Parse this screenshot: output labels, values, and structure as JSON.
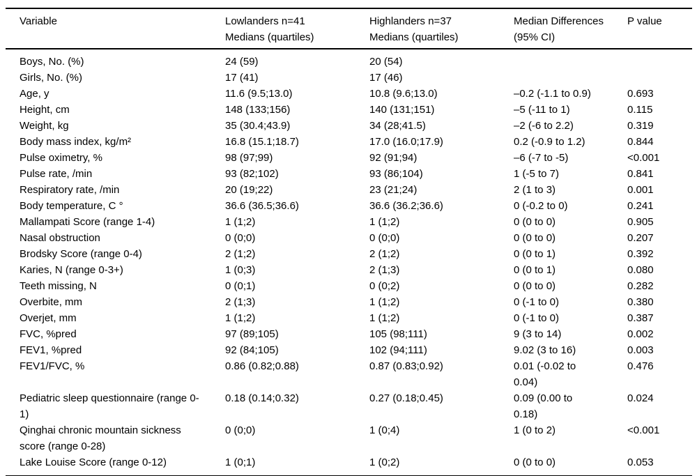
{
  "table": {
    "columns": [
      {
        "key": "variable",
        "line1": "Variable",
        "line2": ""
      },
      {
        "key": "lowlanders",
        "line1": "Lowlanders n=41",
        "line2": "Medians (quartiles)"
      },
      {
        "key": "highlanders",
        "line1": "Highlanders n=37",
        "line2": "Medians (quartiles)"
      },
      {
        "key": "median_difference",
        "line1": "Median Differences",
        "line2": "(95% CI)"
      },
      {
        "key": "p_value",
        "line1": "P value",
        "line2": ""
      }
    ],
    "rows": [
      {
        "cells": [
          "Boys, No. (%)",
          "24 (59)",
          "20 (54)",
          "",
          ""
        ]
      },
      {
        "cells": [
          "Girls, No. (%)",
          "17 (41)",
          "17 (46)",
          "",
          ""
        ]
      },
      {
        "cells": [
          "Age, y",
          "11.6 (9.5;13.0)",
          "10.8 (9.6;13.0)",
          "–0.2 (-1.1 to 0.9)",
          "0.693"
        ]
      },
      {
        "cells": [
          "Height, cm",
          "148 (133;156)",
          "140 (131;151)",
          "–5 (-11 to 1)",
          "0.115"
        ]
      },
      {
        "cells": [
          "Weight, kg",
          "35 (30.4;43.9)",
          "34 (28;41.5)",
          "–2 (-6 to 2.2)",
          "0.319"
        ]
      },
      {
        "cells": [
          "Body mass index, kg/m²",
          "16.8 (15.1;18.7)",
          "17.0 (16.0;17.9)",
          "0.2 (-0.9 to 1.2)",
          "0.844"
        ]
      },
      {
        "cells": [
          "Pulse oximetry, %",
          "98 (97;99)",
          "92 (91;94)",
          "–6 (-7 to -5)",
          "<0.001"
        ]
      },
      {
        "cells": [
          "Pulse rate, /min",
          "93 (82;102)",
          "93 (86;104)",
          "1 (-5 to 7)",
          "0.841"
        ]
      },
      {
        "cells": [
          "Respiratory rate, /min",
          "20 (19;22)",
          "23 (21;24)",
          "2 (1 to 3)",
          "0.001"
        ]
      },
      {
        "cells": [
          "Body temperature, C °",
          "36.6 (36.5;36.6)",
          "36.6 (36.2;36.6)",
          "0 (-0.2 to 0)",
          "0.241"
        ]
      },
      {
        "cells": [
          "Mallampati Score (range 1-4)",
          "1 (1;2)",
          "1 (1;2)",
          "0 (0 to 0)",
          "0.905"
        ]
      },
      {
        "cells": [
          "Nasal obstruction",
          "0 (0;0)",
          "0 (0;0)",
          "0 (0 to 0)",
          "0.207"
        ]
      },
      {
        "cells": [
          "Brodsky Score (range 0-4)",
          "2 (1;2)",
          "2 (1;2)",
          "0 (0 to 1)",
          "0.392"
        ]
      },
      {
        "cells": [
          "Karies, N (range 0-3+)",
          "1 (0;3)",
          "2 (1;3)",
          "0 (0 to 1)",
          "0.080"
        ]
      },
      {
        "cells": [
          "Teeth missing, N",
          "0 (0;1)",
          "0 (0;2)",
          "0 (0 to 0)",
          "0.282"
        ]
      },
      {
        "cells": [
          "Overbite, mm",
          "2 (1;3)",
          "1 (1;2)",
          "0 (-1 to 0)",
          "0.380"
        ]
      },
      {
        "cells": [
          "Overjet, mm",
          "1 (1;2)",
          "1 (1;2)",
          "0 (-1 to 0)",
          "0.387"
        ]
      },
      {
        "cells": [
          "FVC, %pred",
          "97 (89;105)",
          "105 (98;111)",
          "9 (3 to 14)",
          "0.002"
        ]
      },
      {
        "cells": [
          "FEV1, %pred",
          "92 (84;105)",
          "102 (94;111)",
          "9.02 (3 to 16)",
          "0.003"
        ]
      },
      {
        "cells": [
          "FEV1/FVC, %",
          "0.86 (0.82;0.88)",
          "0.87 (0.83;0.92)",
          "0.01 (-0.02 to 0.04)",
          "0.476"
        ]
      },
      {
        "cells": [
          "Pediatric sleep questionnaire (range 0-1)",
          "0.18 (0.14;0.32)",
          "0.27 (0.18;0.45)",
          "0.09 (0.00 to 0.18)",
          "0.024"
        ]
      },
      {
        "cells": [
          "Qinghai chronic mountain sickness score (range 0-28)",
          "0 (0;0)",
          "1 (0;4)",
          "1 (0 to 2)",
          "<0.001"
        ]
      },
      {
        "cells": [
          "Lake Louise Score (range 0-12)",
          "1 (0;1)",
          "1 (0;2)",
          "0 (0 to 0)",
          "0.053"
        ]
      }
    ]
  }
}
